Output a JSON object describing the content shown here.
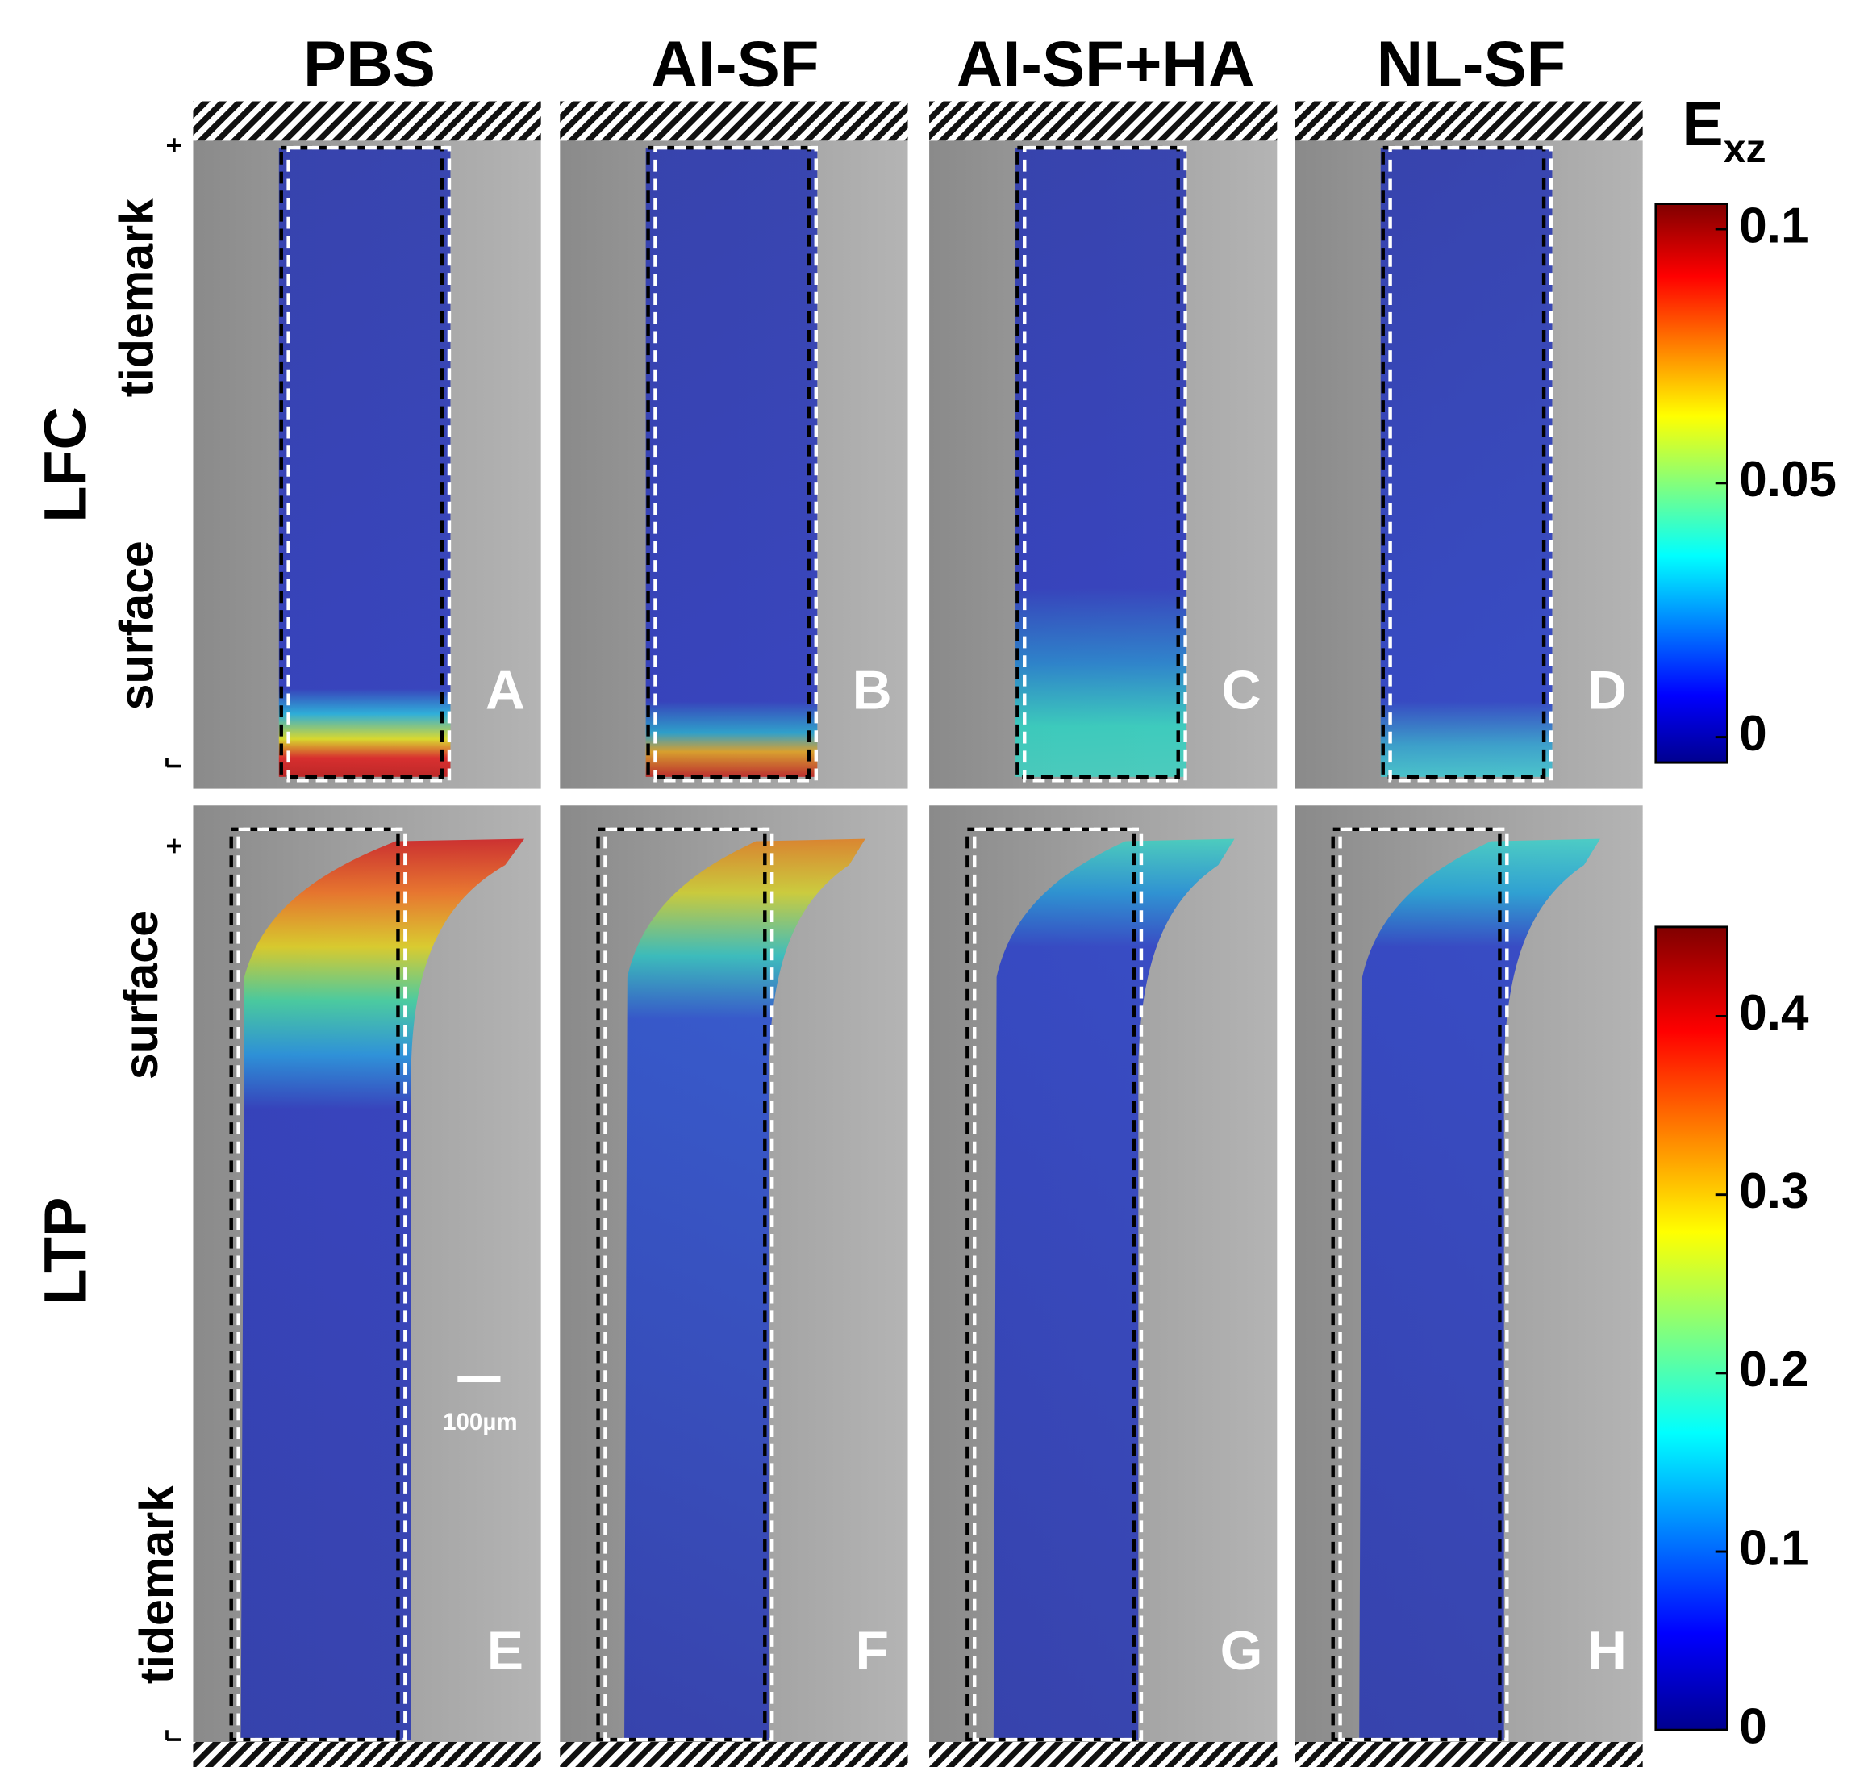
{
  "columns": [
    "PBS",
    "AI-SF",
    "AI-SF+HA",
    "NL-SF"
  ],
  "rows": [
    {
      "label": "LFC",
      "top_marker": "tidemark",
      "bottom_marker": "surface",
      "panels": [
        "A",
        "B",
        "C",
        "D"
      ]
    },
    {
      "label": "LTP",
      "top_marker": "surface",
      "bottom_marker": "tidemark",
      "panels": [
        "E",
        "F",
        "G",
        "H"
      ]
    }
  ],
  "colorbar_title": {
    "symbol": "E",
    "subscript": "xz"
  },
  "colorbars": [
    {
      "lim": [
        -0.005,
        0.105
      ],
      "ticks": [
        0,
        0.05,
        0.1
      ]
    },
    {
      "lim": [
        0,
        0.45
      ],
      "ticks": [
        0,
        0.1,
        0.2,
        0.3,
        0.4
      ]
    }
  ],
  "scale_bar": "100µm"
}
